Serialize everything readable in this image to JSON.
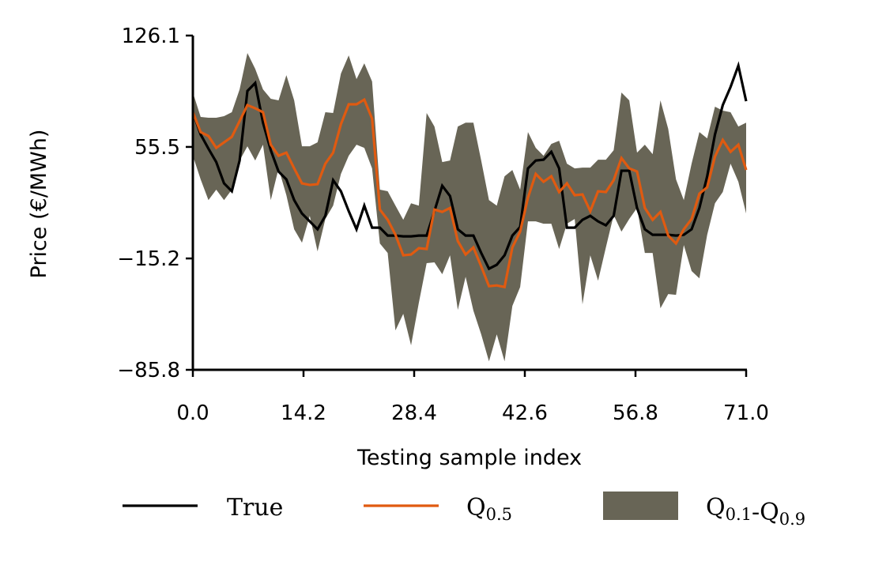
{
  "chart_data": {
    "type": "line",
    "title": "",
    "xlabel": "Testing sample index",
    "ylabel": "Price (€/MWh)",
    "xlim": [
      0,
      71
    ],
    "ylim": [
      -85.8,
      126.1
    ],
    "xticks": [
      "0.0",
      "14.2",
      "28.4",
      "42.6",
      "56.8",
      "71.0"
    ],
    "xtick_values": [
      0,
      14.2,
      28.4,
      42.6,
      56.8,
      71.0
    ],
    "yticks": [
      "126.1",
      "55.5",
      "−15.2",
      "−85.8"
    ],
    "ytick_values": [
      126.1,
      55.5,
      -15.2,
      -85.8
    ],
    "grid": false,
    "legend_position": "bottom",
    "x": [
      0,
      1,
      2,
      3,
      4,
      5,
      6,
      7,
      8,
      9,
      10,
      11,
      12,
      13,
      14,
      15,
      16,
      17,
      18,
      19,
      20,
      21,
      22,
      23,
      24,
      25,
      26,
      27,
      28,
      29,
      30,
      31,
      32,
      33,
      34,
      35,
      36,
      37,
      38,
      39,
      40,
      41,
      42,
      43,
      44,
      45,
      46,
      47,
      48,
      49,
      50,
      51,
      52,
      53,
      54,
      55,
      56,
      57,
      58,
      59,
      60,
      61,
      62,
      63,
      64,
      65,
      66,
      67,
      68,
      69,
      70,
      71
    ],
    "series": [
      {
        "name": "True",
        "kind": "line",
        "color": "#000000",
        "values": [
          77.5,
          63.4,
          54.4,
          45.9,
          32.4,
          27.4,
          46.9,
          91.0,
          96.0,
          70.9,
          53.4,
          39.9,
          34.9,
          21.8,
          13.3,
          8.3,
          3.3,
          11.8,
          34.4,
          27.4,
          14.8,
          3.3,
          18.3,
          4.3,
          4.3,
          -0.7,
          -0.7,
          -1.2,
          -1.2,
          -0.7,
          -0.7,
          14.8,
          30.9,
          24.4,
          3.3,
          -0.7,
          -0.7,
          -11.7,
          -21.7,
          -19.2,
          -13.2,
          -0.7,
          4.8,
          41.9,
          46.9,
          47.4,
          52.4,
          41.9,
          4.3,
          4.3,
          9.3,
          11.8,
          8.3,
          5.8,
          11.8,
          40.4,
          40.4,
          16.8,
          3.3,
          -0.2,
          -0.2,
          -0.2,
          -0.7,
          -0.2,
          3.3,
          16.8,
          36.9,
          63.4,
          82.0,
          93.5,
          107.0,
          84.5
        ]
      },
      {
        "name": "Q0.5",
        "kind": "line",
        "color": "#e05a10",
        "values": [
          77.5,
          64.9,
          62.4,
          54.9,
          58.4,
          61.9,
          71.9,
          82.0,
          80.0,
          77.5,
          56.9,
          49.9,
          51.9,
          41.9,
          32.4,
          31.4,
          31.9,
          44.9,
          51.9,
          69.9,
          82.5,
          82.5,
          85.5,
          73.4,
          15.8,
          9.3,
          -0.2,
          -13.2,
          -12.7,
          -8.7,
          -9.2,
          15.8,
          14.3,
          16.8,
          -4.2,
          -12.7,
          -8.2,
          -20.2,
          -32.8,
          -32.3,
          -33.3,
          -8.2,
          1.8,
          23.3,
          38.4,
          33.4,
          36.9,
          26.9,
          32.4,
          24.9,
          25.4,
          14.8,
          27.4,
          26.9,
          34.4,
          48.4,
          41.9,
          39.9,
          16.8,
          9.3,
          14.3,
          -0.7,
          -5.7,
          3.3,
          9.8,
          25.9,
          29.9,
          49.4,
          59.9,
          52.4,
          56.9,
          40.9
        ]
      },
      {
        "name": "Q0.1-Q0.9",
        "kind": "band",
        "color": "#686556",
        "lower": [
          49.9,
          34.9,
          21.8,
          28.4,
          21.8,
          28.4,
          46.9,
          55.9,
          46.9,
          56.9,
          21.8,
          41.9,
          24.9,
          3.3,
          -5.2,
          11.8,
          -10.7,
          9.8,
          18.3,
          38.4,
          49.9,
          56.9,
          54.9,
          41.9,
          -5.7,
          -11.7,
          -60.8,
          -50.3,
          -70.3,
          -43.3,
          -18.2,
          -17.7,
          -25.2,
          -13.2,
          -47.8,
          -26.8,
          -48.3,
          -63.3,
          -80.4,
          -63.3,
          -80.4,
          -45.3,
          -33.3,
          8.3,
          8.3,
          6.8,
          6.8,
          -9.2,
          6.8,
          9.8,
          -44.3,
          -13.2,
          -29.3,
          -8.2,
          12.3,
          1.8,
          9.8,
          16.8,
          -11.7,
          -11.7,
          -46.8,
          -37.8,
          -38.3,
          -6.7,
          -23.2,
          -27.8,
          -0.2,
          19.8,
          26.9,
          44.9,
          33.4,
          13.3
        ],
        "upper": [
          90.0,
          74.5,
          74.0,
          74.0,
          75.0,
          77.5,
          92.0,
          115.0,
          105.0,
          92.0,
          86.0,
          85.0,
          101.0,
          85.0,
          55.9,
          55.9,
          58.4,
          77.5,
          77.0,
          102.0,
          113.5,
          98.5,
          108.5,
          97.0,
          28.4,
          27.4,
          18.3,
          9.3,
          19.8,
          18.3,
          77.0,
          68.4,
          45.9,
          46.9,
          68.4,
          70.9,
          70.9,
          46.9,
          21.8,
          18.3,
          36.9,
          40.9,
          28.4,
          64.9,
          54.9,
          49.9,
          57.4,
          59.4,
          44.9,
          41.9,
          42.4,
          42.4,
          47.4,
          47.4,
          53.4,
          90.0,
          85.0,
          51.9,
          56.9,
          50.9,
          85.0,
          66.9,
          34.9,
          21.8,
          44.9,
          64.9,
          60.9,
          81.0,
          78.5,
          77.5,
          68.4,
          70.9
        ]
      }
    ],
    "legend": [
      {
        "label": "True",
        "main": "True",
        "parts": [
          {
            "t": "True",
            "sub": false
          }
        ]
      },
      {
        "label": "Q0.5",
        "parts": [
          {
            "t": "Q",
            "sub": false
          },
          {
            "t": "0.5",
            "sub": true
          }
        ]
      },
      {
        "label": "Q0.1-Q0.9",
        "parts": [
          {
            "t": "Q",
            "sub": false
          },
          {
            "t": "0.1",
            "sub": true
          },
          {
            "t": "-Q",
            "sub": false
          },
          {
            "t": "0.9",
            "sub": true
          }
        ]
      }
    ]
  }
}
